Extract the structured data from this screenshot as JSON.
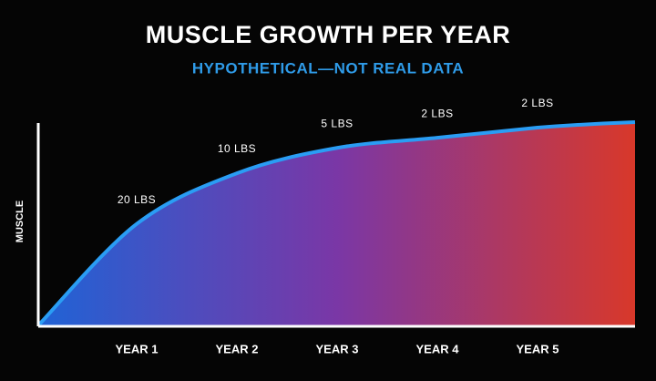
{
  "chart_data": {
    "type": "area",
    "title": "MUSCLE GROWTH PER YEAR",
    "subtitle": "HYPOTHETICAL—NOT REAL DATA",
    "y_label": "MUSCLE",
    "categories": [
      "YEAR 1",
      "YEAR 2",
      "YEAR 3",
      "YEAR 4",
      "YEAR 5"
    ],
    "values": [
      20,
      10,
      5,
      2,
      2
    ],
    "value_labels": [
      "20 LBS",
      "10 LBS",
      "5 LBS",
      "2 LBS",
      "2 LBS"
    ],
    "subtitle_color": "#2f9be8",
    "line_color": "#2a9df4",
    "gradient": [
      "#1f63d6",
      "#7a37a6",
      "#d8382a"
    ]
  }
}
